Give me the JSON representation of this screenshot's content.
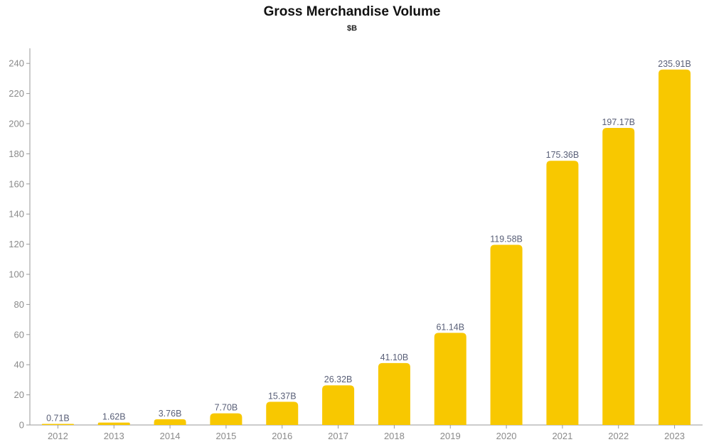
{
  "chart_data": {
    "type": "bar",
    "title": "Gross Merchandise Volume",
    "subtitle": "$B",
    "xlabel": "",
    "ylabel": "",
    "categories": [
      "2012",
      "2013",
      "2014",
      "2015",
      "2016",
      "2017",
      "2018",
      "2019",
      "2020",
      "2021",
      "2022",
      "2023"
    ],
    "values": [
      0.71,
      1.62,
      3.76,
      7.7,
      15.37,
      26.32,
      41.1,
      61.14,
      119.58,
      175.36,
      197.17,
      235.91
    ],
    "data_labels": [
      "0.71B",
      "1.62B",
      "3.76B",
      "7.70B",
      "15.37B",
      "26.32B",
      "41.10B",
      "61.14B",
      "119.58B",
      "175.36B",
      "197.17B",
      "235.91B"
    ],
    "y_ticks": [
      0,
      20,
      40,
      60,
      80,
      100,
      120,
      140,
      160,
      180,
      200,
      220,
      240
    ],
    "ylim": [
      0,
      250
    ],
    "grid": false,
    "legend": "none",
    "bar_color": "#f8c800"
  }
}
